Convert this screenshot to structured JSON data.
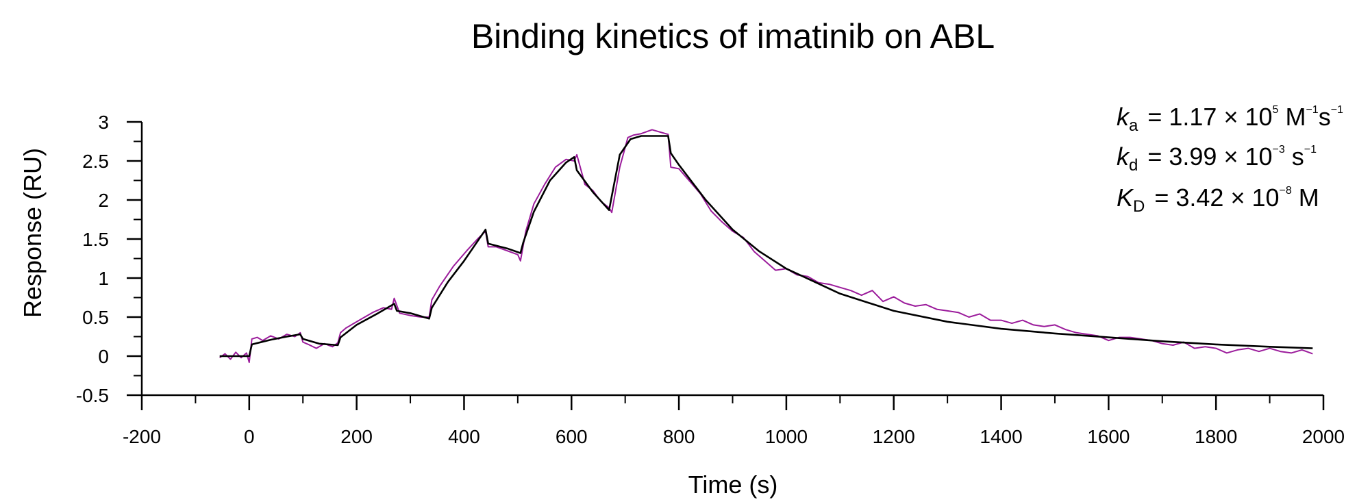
{
  "chart_data": {
    "type": "line",
    "title": "Binding kinetics of imatinib on ABL",
    "xlabel": "Time (s)",
    "ylabel": "Response (RU)",
    "xlim": [
      -200,
      2000
    ],
    "ylim": [
      -0.5,
      3
    ],
    "xticks": [
      "-200",
      "0",
      "200",
      "400",
      "600",
      "800",
      "1000",
      "1200",
      "1400",
      "1600",
      "1800",
      "2000"
    ],
    "yticks": [
      "-0.5",
      "0",
      "0.5",
      "1",
      "1.5",
      "2",
      "2.5",
      "3"
    ],
    "grid": false,
    "legend": "none",
    "colors": {
      "data": "#9b1b9b",
      "fit": "#000000"
    },
    "series": [
      {
        "role": "measured",
        "x": [
          -55,
          -45,
          -35,
          -25,
          -15,
          -5,
          0,
          5,
          15,
          25,
          40,
          55,
          70,
          85,
          95,
          100,
          110,
          125,
          140,
          155,
          165,
          170,
          180,
          195,
          210,
          230,
          250,
          265,
          270,
          280,
          300,
          320,
          335,
          340,
          355,
          380,
          405,
          425,
          440,
          445,
          460,
          480,
          500,
          505,
          515,
          530,
          550,
          570,
          590,
          605,
          610,
          625,
          640,
          655,
          670,
          675,
          690,
          705,
          715,
          730,
          750,
          770,
          780,
          785,
          800,
          820,
          840,
          860,
          880,
          900,
          920,
          940,
          960,
          980,
          1000,
          1020,
          1040,
          1060,
          1080,
          1100,
          1120,
          1140,
          1160,
          1180,
          1200,
          1220,
          1240,
          1260,
          1280,
          1300,
          1320,
          1340,
          1360,
          1380,
          1400,
          1420,
          1440,
          1460,
          1480,
          1500,
          1520,
          1540,
          1560,
          1580,
          1600,
          1620,
          1640,
          1660,
          1680,
          1700,
          1720,
          1740,
          1760,
          1780,
          1800,
          1820,
          1840,
          1860,
          1880,
          1900,
          1920,
          1940,
          1960,
          1980
        ],
        "y": [
          -0.02,
          0.03,
          -0.04,
          0.05,
          -0.02,
          0.04,
          -0.08,
          0.22,
          0.24,
          0.2,
          0.26,
          0.22,
          0.28,
          0.25,
          0.3,
          0.18,
          0.15,
          0.1,
          0.16,
          0.12,
          0.17,
          0.3,
          0.36,
          0.42,
          0.48,
          0.56,
          0.62,
          0.6,
          0.74,
          0.55,
          0.52,
          0.5,
          0.5,
          0.72,
          0.9,
          1.15,
          1.35,
          1.5,
          1.6,
          1.4,
          1.4,
          1.35,
          1.3,
          1.22,
          1.6,
          1.95,
          2.2,
          2.42,
          2.52,
          2.5,
          2.58,
          2.2,
          2.12,
          1.98,
          1.9,
          1.84,
          2.42,
          2.8,
          2.83,
          2.85,
          2.9,
          2.86,
          2.84,
          2.42,
          2.4,
          2.24,
          2.08,
          1.86,
          1.72,
          1.6,
          1.52,
          1.34,
          1.22,
          1.1,
          1.12,
          1.04,
          1.02,
          0.94,
          0.92,
          0.88,
          0.84,
          0.78,
          0.84,
          0.7,
          0.76,
          0.68,
          0.64,
          0.66,
          0.6,
          0.58,
          0.56,
          0.5,
          0.54,
          0.46,
          0.46,
          0.42,
          0.46,
          0.4,
          0.38,
          0.4,
          0.34,
          0.3,
          0.28,
          0.26,
          0.2,
          0.24,
          0.24,
          0.22,
          0.2,
          0.16,
          0.14,
          0.18,
          0.1,
          0.12,
          0.1,
          0.04,
          0.08,
          0.1,
          0.06,
          0.1,
          0.06,
          0.04,
          0.08,
          0.03
        ]
      },
      {
        "role": "fit",
        "x": [
          -55,
          0,
          5,
          40,
          70,
          95,
          100,
          130,
          165,
          170,
          200,
          240,
          270,
          275,
          300,
          335,
          340,
          370,
          400,
          440,
          445,
          480,
          505,
          510,
          530,
          560,
          590,
          605,
          610,
          640,
          670,
          675,
          690,
          710,
          730,
          760,
          780,
          785,
          800,
          850,
          900,
          950,
          1000,
          1100,
          1200,
          1300,
          1400,
          1500,
          1600,
          1700,
          1800,
          1900,
          1980
        ],
        "y": [
          0,
          0,
          0.15,
          0.21,
          0.25,
          0.28,
          0.22,
          0.16,
          0.14,
          0.24,
          0.4,
          0.55,
          0.67,
          0.58,
          0.55,
          0.48,
          0.62,
          0.95,
          1.22,
          1.62,
          1.44,
          1.38,
          1.32,
          1.45,
          1.85,
          2.25,
          2.48,
          2.55,
          2.38,
          2.1,
          1.87,
          2.05,
          2.58,
          2.78,
          2.82,
          2.82,
          2.82,
          2.6,
          2.45,
          2.0,
          1.62,
          1.34,
          1.12,
          0.8,
          0.58,
          0.44,
          0.35,
          0.29,
          0.24,
          0.19,
          0.15,
          0.12,
          0.1
        ]
      }
    ],
    "annotations": {
      "ka": {
        "symbol": "k",
        "sub": "a",
        "text": "= 1.17 × 10",
        "exp": "5",
        "unit_main": "M",
        "unit_exp": "−1",
        "unit_tail": "s",
        "unit_tail_exp": "−1"
      },
      "kd": {
        "symbol": "k",
        "sub": "d",
        "text": "= 3.99 × 10",
        "exp": "−3",
        "unit_main": "s",
        "unit_exp": "−1"
      },
      "KD": {
        "symbol": "K",
        "sub": "D",
        "text": "= 3.42 × 10",
        "exp": "−8",
        "unit_main": "M"
      }
    }
  }
}
